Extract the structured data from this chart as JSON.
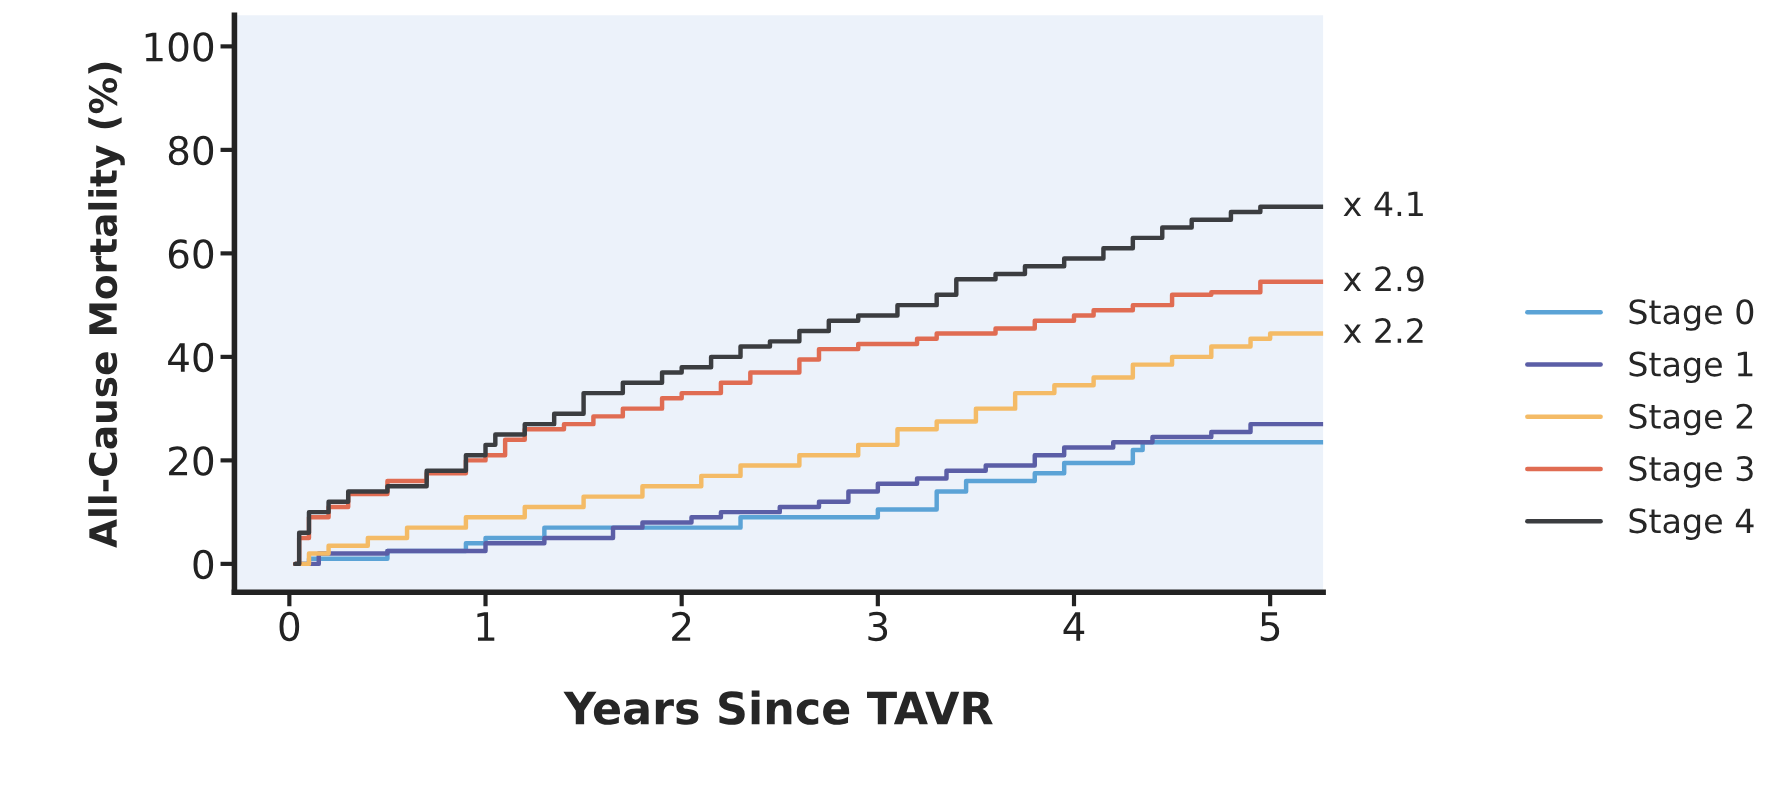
{
  "chart_data": {
    "type": "step",
    "xlabel": "Years Since TAVR",
    "ylabel": "All-Cause Mortality (%)",
    "xlim": [
      -0.28,
      5.27
    ],
    "ylim": [
      -5.5,
      106
    ],
    "xticks": [
      0,
      1,
      2,
      3,
      4,
      5
    ],
    "yticks": [
      0,
      20,
      40,
      60,
      80,
      100
    ],
    "grid": false,
    "legend": "right",
    "line_style": "solid",
    "marker": "none",
    "annotations": [
      "x 4.1",
      "x 2.9",
      "x 2.2"
    ],
    "series": [
      {
        "name": "Stage 0",
        "color": "#5ba3d6",
        "x": [
          0.03,
          0.1,
          0.5,
          0.9,
          1.0,
          1.3,
          2.3,
          3.0,
          3.3,
          3.45,
          3.8,
          3.95,
          4.3,
          4.35,
          5.27
        ],
        "values": [
          0,
          1,
          2.5,
          4,
          5,
          7,
          9,
          10.5,
          14,
          16,
          17.5,
          19.5,
          22,
          23.5,
          23.5
        ]
      },
      {
        "name": "Stage 1",
        "color": "#5b5ea6",
        "x": [
          0.03,
          0.15,
          0.5,
          1.0,
          1.3,
          1.65,
          1.8,
          2.05,
          2.2,
          2.5,
          2.7,
          2.85,
          3.0,
          3.2,
          3.35,
          3.55,
          3.8,
          3.95,
          4.2,
          4.4,
          4.7,
          4.9,
          5.27
        ],
        "values": [
          0,
          2,
          2.5,
          4,
          5,
          7,
          8,
          9,
          10,
          11,
          12,
          14,
          15.5,
          16.5,
          18,
          19,
          21,
          22.5,
          23.5,
          24.5,
          25.5,
          27,
          27
        ]
      },
      {
        "name": "Stage 2",
        "color": "#f4bb66",
        "x": [
          0.03,
          0.1,
          0.2,
          0.4,
          0.6,
          0.9,
          1.2,
          1.5,
          1.8,
          2.1,
          2.3,
          2.6,
          2.9,
          3.1,
          3.3,
          3.5,
          3.7,
          3.9,
          4.1,
          4.3,
          4.5,
          4.7,
          4.9,
          5.0,
          5.27
        ],
        "values": [
          0,
          2,
          3.5,
          5,
          7,
          9,
          11,
          13,
          15,
          17,
          19,
          21,
          23,
          26,
          27.5,
          30,
          33,
          34.5,
          36,
          38.5,
          40,
          42,
          43.5,
          44.5,
          44.5
        ]
      },
      {
        "name": "Stage 3",
        "color": "#e06c52",
        "x": [
          0.03,
          0.05,
          0.1,
          0.2,
          0.3,
          0.5,
          0.7,
          0.9,
          1.0,
          1.1,
          1.2,
          1.4,
          1.55,
          1.7,
          1.9,
          2.0,
          2.2,
          2.35,
          2.6,
          2.7,
          2.9,
          3.2,
          3.3,
          3.6,
          3.8,
          4.0,
          4.1,
          4.3,
          4.5,
          4.7,
          4.95,
          5.27
        ],
        "values": [
          0,
          5,
          9,
          11,
          13.5,
          16,
          17.5,
          20,
          21,
          24,
          26,
          27,
          28.5,
          30,
          32,
          33,
          35,
          37,
          39.5,
          41.5,
          42.5,
          43.5,
          44.5,
          45.5,
          47,
          48,
          49,
          50,
          52,
          52.5,
          54.5,
          54.5
        ]
      },
      {
        "name": "Stage 4",
        "color": "#3b3d40",
        "x": [
          0.03,
          0.05,
          0.1,
          0.2,
          0.3,
          0.5,
          0.7,
          0.9,
          1.0,
          1.05,
          1.2,
          1.35,
          1.5,
          1.7,
          1.9,
          2.0,
          2.15,
          2.3,
          2.45,
          2.6,
          2.75,
          2.9,
          3.1,
          3.3,
          3.4,
          3.6,
          3.75,
          3.95,
          4.15,
          4.3,
          4.45,
          4.6,
          4.8,
          4.95,
          5.27
        ],
        "values": [
          0,
          6,
          10,
          12,
          14,
          15,
          18,
          21,
          23,
          25,
          27,
          29,
          33,
          35,
          37,
          38,
          40,
          42,
          43,
          45,
          47,
          48,
          50,
          52,
          55,
          56,
          57.5,
          59,
          61,
          63,
          65,
          66.5,
          68,
          69,
          69
        ]
      }
    ]
  }
}
